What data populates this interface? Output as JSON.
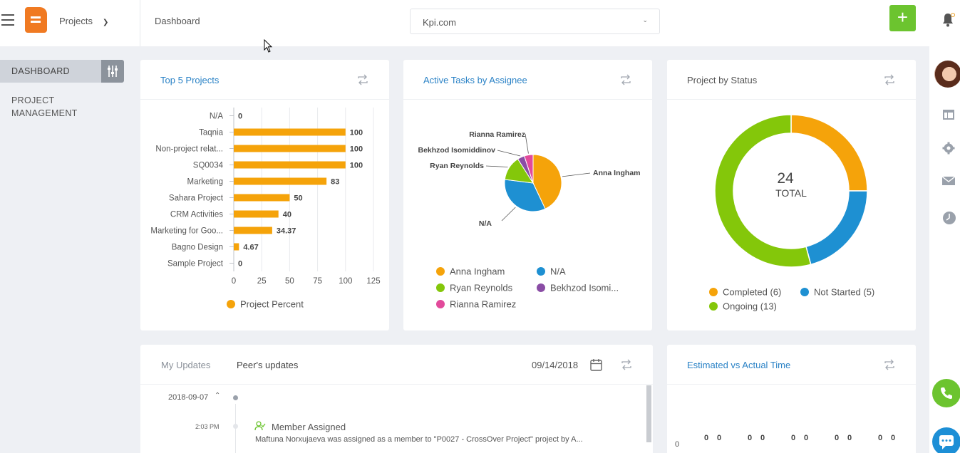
{
  "header": {
    "app_switcher": "Projects",
    "breadcrumb": "Dashboard",
    "org_select": "Kpi.com",
    "add_label": "+"
  },
  "sidebar": {
    "items": [
      {
        "label": "DASHBOARD",
        "active": true
      },
      {
        "label": "PROJECT MANAGEMENT",
        "active": false
      }
    ]
  },
  "right_rail": {
    "icons": [
      "avatar",
      "layout-icon",
      "gear-icon",
      "mail-icon",
      "clock-icon",
      "phone-icon",
      "chat-icon"
    ]
  },
  "colors": {
    "accent_blue": "#2a82c6",
    "green": "#6cc42f",
    "orange": "#f5a30a",
    "blue": "#1e90d2",
    "lime": "#84c70a",
    "purple": "#8a4da5",
    "pink": "#e24a9b"
  },
  "cards": {
    "top_projects": {
      "title": "Top 5 Projects",
      "legend": "Project Percent"
    },
    "active_tasks": {
      "title": "Active Tasks by Assignee"
    },
    "project_status": {
      "title": "Project by Status",
      "center_value": "24",
      "center_label": "TOTAL"
    },
    "updates": {
      "tab_my": "My Updates",
      "tab_peer": "Peer's updates",
      "date": "09/14/2018"
    },
    "estimated": {
      "title": "Estimated vs Actual Time",
      "zero_axis": "0"
    }
  },
  "chart_data": [
    {
      "type": "bar",
      "orientation": "horizontal",
      "title": "Top 5 Projects",
      "categories": [
        "N/A",
        "Taqnia",
        "Non-project relat...",
        "SQ0034",
        "Marketing",
        "Sahara Project",
        "CRM Activities",
        "Marketing for Goo...",
        "Bagno Design",
        "Sample Project"
      ],
      "series": [
        {
          "name": "Project Percent",
          "values": [
            0,
            100,
            100,
            100,
            83,
            50,
            40,
            34.37,
            4.67,
            0
          ]
        }
      ],
      "value_labels": [
        "0",
        "100",
        "100",
        "100",
        "83",
        "50",
        "40",
        "34.37",
        "4.67",
        "0"
      ],
      "xlim": [
        0,
        125
      ],
      "xticks": [
        "0",
        "25",
        "50",
        "75",
        "100",
        "125"
      ],
      "grid": true,
      "legend": "bottom",
      "color": "#f5a30a"
    },
    {
      "type": "pie",
      "title": "Active Tasks by Assignee",
      "slices": [
        {
          "label": "Anna Ingham",
          "legend_label": "Anna Ingham",
          "value": 43,
          "color": "#f5a30a"
        },
        {
          "label": "N/A",
          "legend_label": "N/A",
          "value": 34,
          "color": "#1e90d2"
        },
        {
          "label": "Ryan Reynolds",
          "legend_label": "Ryan Reynolds",
          "value": 14,
          "color": "#84c70a"
        },
        {
          "label": "Bekhzod Isomiddinov",
          "legend_label": "Bekhzod Isomi...",
          "value": 4,
          "color": "#8a4da5"
        },
        {
          "label": "Rianna Ramirez",
          "legend_label": "Rianna Ramirez",
          "value": 5,
          "color": "#e24a9b"
        }
      ],
      "legend": "bottom"
    },
    {
      "type": "pie",
      "subtype": "donut",
      "title": "Project by Status",
      "slices": [
        {
          "label": "Completed (6)",
          "value": 6,
          "color": "#f5a30a"
        },
        {
          "label": "Not Started (5)",
          "value": 5,
          "color": "#1e90d2"
        },
        {
          "label": "Ongoing (13)",
          "value": 13,
          "color": "#84c70a"
        }
      ],
      "total": 24,
      "legend": "bottom"
    },
    {
      "type": "bar",
      "title": "Estimated vs Actual Time",
      "value_labels": [
        "0",
        "0",
        "0",
        "0",
        "0",
        "0",
        "0",
        "0",
        "0",
        "0"
      ],
      "y_axis_label": "0"
    }
  ],
  "updates_feed": [
    {
      "date": "2018-09-07",
      "time": "2:03 PM",
      "title": "Member Assigned",
      "text": "Maftuna Norxujaeva was assigned as a member to \"P0027 - CrossOver Project\" project by A..."
    }
  ]
}
